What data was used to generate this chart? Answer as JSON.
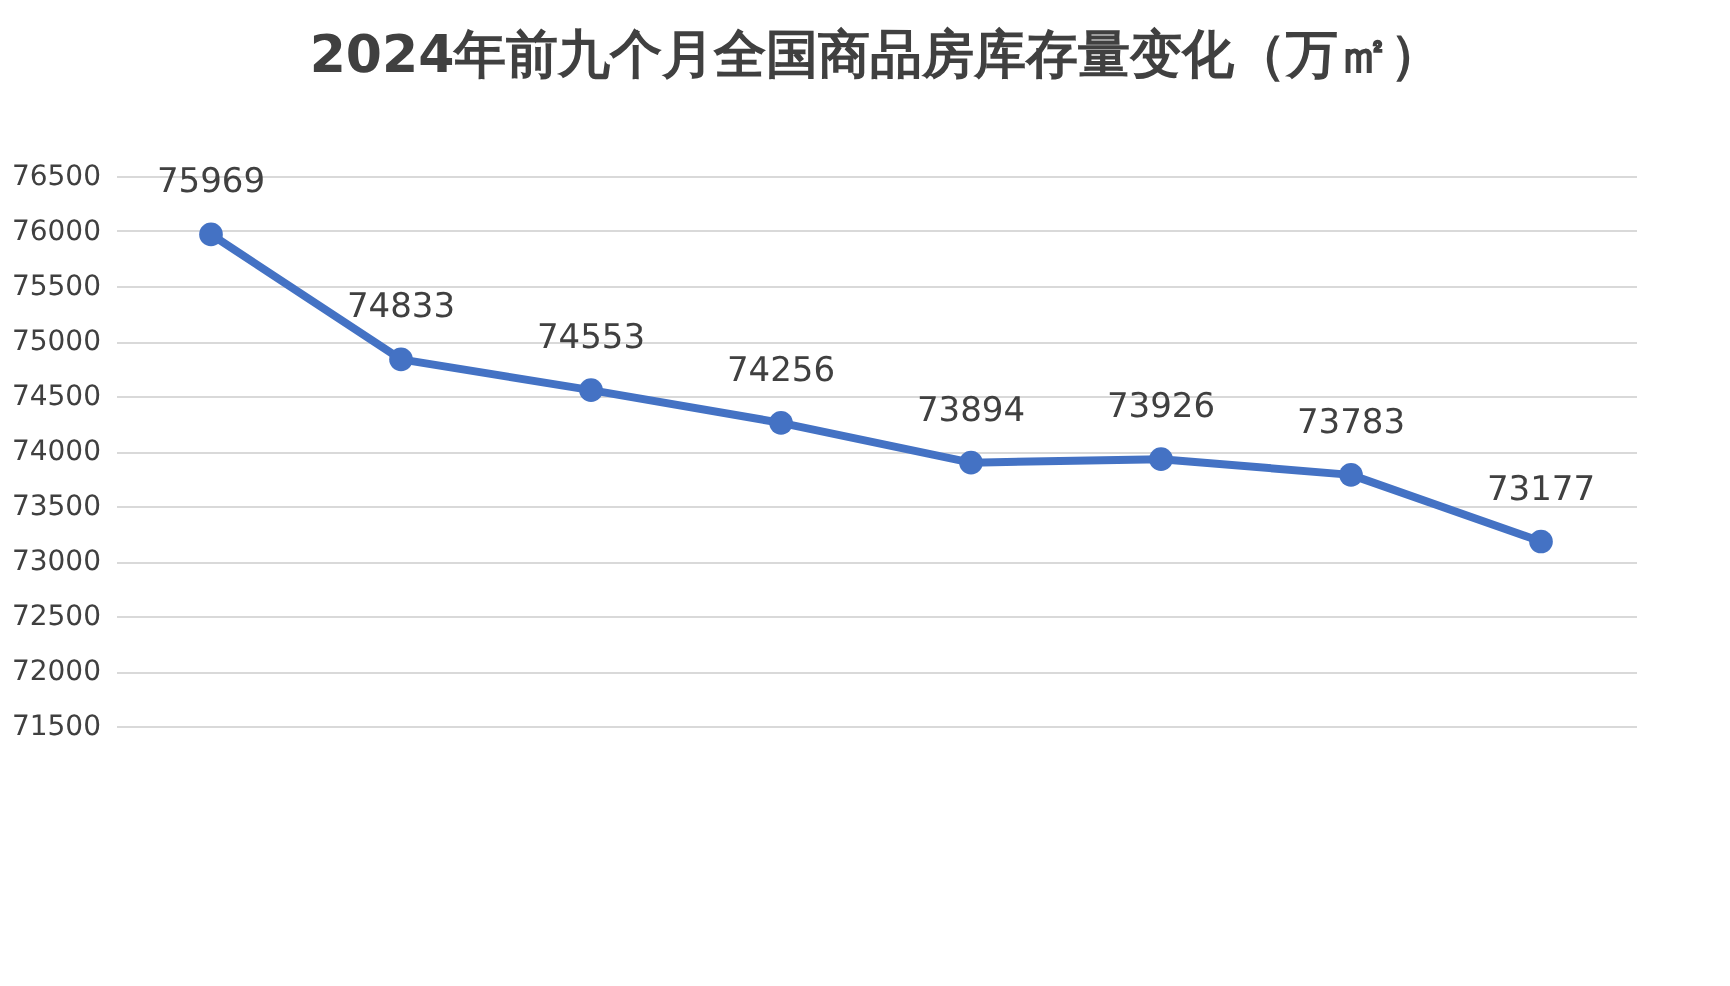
{
  "chart_data": {
    "type": "line",
    "title": "2024年前九个月全国商品房库存量变化（万㎡）",
    "categories": [
      null,
      null,
      null,
      null,
      null,
      null,
      null,
      null
    ],
    "series": [
      {
        "color": "#4472c4",
        "values": [
          75969,
          74833,
          74553,
          74256,
          73894,
          73926,
          73783,
          73177
        ]
      }
    ],
    "ylim": [
      71500,
      76500
    ],
    "yticks": [
      71500,
      72000,
      72500,
      73000,
      73500,
      74000,
      74500,
      75000,
      75500,
      76000,
      76500
    ],
    "grid": "y",
    "marker": "circle",
    "line_style": "solid",
    "data_labels": true,
    "tick_labels": "y"
  }
}
